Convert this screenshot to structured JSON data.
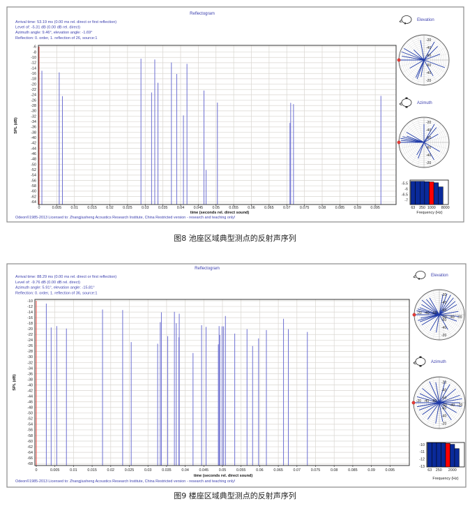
{
  "figures": [
    {
      "title": "Reflectogram",
      "info": [
        "Arrival time: 53.19 ms (0.00 ms rel. direct or first reflection)",
        "Level of: -5.31 dB (0.00 dB rel. direct)",
        "Azimuth angle: 9.46°, elevation angle: -1.69°",
        "Reflection: 0. order, 1. reflection of 26, source:1"
      ],
      "footer": "Odeon©1985-2013   Licensed to: Zhangjiusheng Acoustics Research Institute, China   Restricted version - research and teaching only!",
      "elevation_label": "Elevation",
      "azimuth_label": "Azimuth",
      "caption": "图8 池座区域典型测点的反射声序列"
    },
    {
      "title": "Reflectogram",
      "info": [
        "Arrival time: 88.29 ms (0.00 ms rel. direct or first reflection)",
        "Level of: -9.76 dB (0.00 dB rel. direct)",
        "Azimuth angle: 5.91°, elevation angle: -15.81°",
        "Reflection: 0. order, 1. reflection of 36, source:1"
      ],
      "footer": "Odeon©1985-2013   Licensed to: Zhangjiusheng Acoustics Research Institute, China   Restricted version - research and teaching only!",
      "elevation_label": "Elevation",
      "azimuth_label": "Azimuth",
      "caption": "图9 楼座区域典型测点的反射声序列"
    }
  ],
  "colors": {
    "reflection": "#6d70d2",
    "direct": "#e8403a",
    "highlight_band": "#ff0000",
    "band": "#0a2a9a",
    "text": "#3b3fae"
  },
  "chart_data": [
    {
      "type": "bar",
      "title": "Reflectogram",
      "xlabel": "time (seconds rel. direct sound)",
      "ylabel": "SPL (dB)",
      "xlim": [
        0,
        0.1
      ],
      "ylim": [
        -5.5,
        -65
      ],
      "grid": true,
      "xticks": [
        0,
        0.005,
        0.01,
        0.015,
        0.02,
        0.025,
        0.03,
        0.035,
        0.04,
        0.045,
        0.05,
        0.055,
        0.06,
        0.065,
        0.07,
        0.075,
        0.08,
        0.085,
        0.09,
        0.095
      ],
      "yticks": [
        -6,
        -8,
        -10,
        -12,
        -14,
        -16,
        -18,
        -20,
        -22,
        -24,
        -26,
        -28,
        -30,
        -32,
        -34,
        -36,
        -38,
        -40,
        -42,
        -44,
        -46,
        -48,
        -50,
        -52,
        -54,
        -56,
        -58,
        -60,
        -62,
        -64
      ],
      "direct": {
        "t": 0,
        "level": -6
      },
      "reflections": [
        {
          "t": 0.0008,
          "level": -15.0
        },
        {
          "t": 0.0057,
          "level": -15.6
        },
        {
          "t": 0.0066,
          "level": -24.5
        },
        {
          "t": 0.0288,
          "level": -10.5
        },
        {
          "t": 0.0318,
          "level": -23.1
        },
        {
          "t": 0.0327,
          "level": -10.8
        },
        {
          "t": 0.0336,
          "level": -19.5
        },
        {
          "t": 0.0374,
          "level": -11.9
        },
        {
          "t": 0.0389,
          "level": -16.2
        },
        {
          "t": 0.0408,
          "level": -31.7
        },
        {
          "t": 0.0418,
          "level": -12.4
        },
        {
          "t": 0.0466,
          "level": -22.4
        },
        {
          "t": 0.0472,
          "level": -52.1
        },
        {
          "t": 0.0504,
          "level": -26.9
        },
        {
          "t": 0.0709,
          "level": -34.5
        },
        {
          "t": 0.0711,
          "level": -27.0
        },
        {
          "t": 0.0719,
          "level": -27.5
        },
        {
          "t": 0.0966,
          "level": -24.4
        }
      ]
    },
    {
      "type": "polar",
      "title": "Elevation",
      "rlim": [
        -73,
        -7
      ],
      "ring_labels": [
        -20,
        -40,
        -60
      ],
      "direct_angle": 180,
      "rays": [
        {
          "angle": 180,
          "level": -8
        },
        {
          "angle": 150,
          "level": -12
        },
        {
          "angle": 160,
          "level": -10
        },
        {
          "angle": 170,
          "level": -14
        },
        {
          "angle": 100,
          "level": -20
        },
        {
          "angle": 60,
          "level": -18
        },
        {
          "angle": 45,
          "level": -22
        },
        {
          "angle": 20,
          "level": -28
        },
        {
          "angle": -20,
          "level": -15
        },
        {
          "angle": -60,
          "level": -25
        },
        {
          "angle": -110,
          "level": -20
        },
        {
          "angle": -115,
          "level": -22
        },
        {
          "angle": -100,
          "level": -28
        },
        {
          "angle": -150,
          "level": -30
        },
        {
          "angle": 135,
          "level": -35
        }
      ]
    },
    {
      "type": "polar",
      "title": "Azimuth",
      "rlim": [
        -73,
        -7
      ],
      "ring_labels": [
        -20,
        -40,
        -60
      ],
      "direct_angle": 180,
      "rays": [
        {
          "angle": 180,
          "level": -6
        },
        {
          "angle": 175,
          "level": -12
        },
        {
          "angle": 170,
          "level": -10
        },
        {
          "angle": 165,
          "level": -15
        },
        {
          "angle": 150,
          "level": -20
        },
        {
          "angle": 90,
          "level": -25
        },
        {
          "angle": 60,
          "level": -18
        },
        {
          "angle": 50,
          "level": -22
        },
        {
          "angle": 30,
          "level": -30
        },
        {
          "angle": -30,
          "level": -25
        },
        {
          "angle": -60,
          "level": -20
        },
        {
          "angle": -110,
          "level": -28
        },
        {
          "angle": -120,
          "level": -35
        },
        {
          "angle": 160,
          "level": -25
        }
      ]
    },
    {
      "type": "bar",
      "xlabel": "Frequency (Hz)",
      "ylim": [
        -5.2,
        -7.4
      ],
      "yticks": [
        -5.5,
        -6,
        -6.5,
        -7
      ],
      "xtick_labels": [
        "63",
        "250",
        "1000",
        "8000"
      ],
      "values": [
        -5.31,
        -5.31,
        -5.31,
        -5.34,
        -5.36,
        -5.44,
        -5.81
      ],
      "highlight_index": 4
    },
    {
      "type": "bar",
      "title": "Reflectogram",
      "xlabel": "time (seconds rel. direct sound)",
      "ylabel": "SPL (dB)",
      "xlim": [
        0,
        0.1
      ],
      "ylim": [
        -9.5,
        -68.7
      ],
      "grid": true,
      "xticks": [
        0,
        0.005,
        0.01,
        0.015,
        0.02,
        0.025,
        0.03,
        0.035,
        0.04,
        0.045,
        0.05,
        0.055,
        0.06,
        0.065,
        0.07,
        0.075,
        0.08,
        0.085,
        0.09,
        0.095
      ],
      "yticks": [
        -10,
        -12,
        -14,
        -16,
        -18,
        -20,
        -22,
        -24,
        -26,
        -28,
        -30,
        -32,
        -34,
        -36,
        -38,
        -40,
        -42,
        -44,
        -46,
        -48,
        -50,
        -52,
        -54,
        -56,
        -58,
        -60,
        -62,
        -64,
        -66,
        -68
      ],
      "direct": {
        "t": 0,
        "level": -10
      },
      "reflections": [
        {
          "t": 0.0027,
          "level": -11.0
        },
        {
          "t": 0.004,
          "level": -19.5
        },
        {
          "t": 0.0055,
          "level": -19.0
        },
        {
          "t": 0.0081,
          "level": -19.9
        },
        {
          "t": 0.0178,
          "level": -13.1
        },
        {
          "t": 0.0232,
          "level": -13.3
        },
        {
          "t": 0.0255,
          "level": -24.7
        },
        {
          "t": 0.0326,
          "level": -25.3
        },
        {
          "t": 0.0333,
          "level": -17.6
        },
        {
          "t": 0.0336,
          "level": -14.1
        },
        {
          "t": 0.0353,
          "level": -22.6
        },
        {
          "t": 0.0371,
          "level": -13.9
        },
        {
          "t": 0.0376,
          "level": -18.0
        },
        {
          "t": 0.0383,
          "level": -23.0
        },
        {
          "t": 0.0384,
          "level": -14.6
        },
        {
          "t": 0.0421,
          "level": -28.6
        },
        {
          "t": 0.0444,
          "level": -18.7
        },
        {
          "t": 0.0456,
          "level": -19.3
        },
        {
          "t": 0.0489,
          "level": -25.5
        },
        {
          "t": 0.0491,
          "level": -19.0
        },
        {
          "t": 0.0493,
          "level": -22.2
        },
        {
          "t": 0.0499,
          "level": -19.1
        },
        {
          "t": 0.0503,
          "level": -19.1
        },
        {
          "t": 0.0508,
          "level": -15.4
        },
        {
          "t": 0.0533,
          "level": -21.7
        },
        {
          "t": 0.0566,
          "level": -20.1
        },
        {
          "t": 0.0581,
          "level": -26.1
        },
        {
          "t": 0.0597,
          "level": -23.4
        },
        {
          "t": 0.0618,
          "level": -20.4
        },
        {
          "t": 0.0664,
          "level": -16.4
        },
        {
          "t": 0.0677,
          "level": -20.1
        },
        {
          "t": 0.0728,
          "level": -21.1
        }
      ]
    },
    {
      "type": "polar",
      "title": "Elevation",
      "rlim": [
        -73,
        -7
      ],
      "ring_labels": [
        -20,
        -40,
        -60
      ],
      "direct_angle": 180,
      "rays": [
        {
          "angle": 180,
          "level": -10
        },
        {
          "angle": 170,
          "level": -12
        },
        {
          "angle": 165,
          "level": -14
        },
        {
          "angle": 160,
          "level": -18
        },
        {
          "angle": 150,
          "level": -19
        },
        {
          "angle": 140,
          "level": -13
        },
        {
          "angle": 130,
          "level": -20
        },
        {
          "angle": 120,
          "level": -22
        },
        {
          "angle": 80,
          "level": -19
        },
        {
          "angle": 70,
          "level": -14
        },
        {
          "angle": 60,
          "level": -13
        },
        {
          "angle": 50,
          "level": -15
        },
        {
          "angle": 40,
          "level": -18
        },
        {
          "angle": 30,
          "level": -20
        },
        {
          "angle": 10,
          "level": -22
        },
        {
          "angle": -5,
          "level": -21
        },
        {
          "angle": -20,
          "level": -24
        },
        {
          "angle": -150,
          "level": -20
        },
        {
          "angle": -160,
          "level": -19
        },
        {
          "angle": -170,
          "level": -23
        },
        {
          "angle": -120,
          "level": -25
        },
        {
          "angle": -100,
          "level": -26
        },
        {
          "angle": -60,
          "level": -28
        },
        {
          "angle": 195,
          "level": -15
        }
      ]
    },
    {
      "type": "polar",
      "title": "Azimuth",
      "rlim": [
        -73,
        -7
      ],
      "ring_labels": [
        -20,
        -40,
        -60
      ],
      "direct_angle": 180,
      "rays": [
        {
          "angle": 180,
          "level": -10
        },
        {
          "angle": 165,
          "level": -14
        },
        {
          "angle": 155,
          "level": -18
        },
        {
          "angle": 140,
          "level": -16
        },
        {
          "angle": 115,
          "level": -13
        },
        {
          "angle": 100,
          "level": -20
        },
        {
          "angle": 75,
          "level": -15
        },
        {
          "angle": 60,
          "level": -19
        },
        {
          "angle": 40,
          "level": -18
        },
        {
          "angle": 20,
          "level": -17
        },
        {
          "angle": 10,
          "level": -14
        },
        {
          "angle": 0,
          "level": -20
        },
        {
          "angle": -10,
          "level": -16
        },
        {
          "angle": -30,
          "level": -22
        },
        {
          "angle": -55,
          "level": -19
        },
        {
          "angle": -80,
          "level": -24
        },
        {
          "angle": -100,
          "level": -19
        },
        {
          "angle": -125,
          "level": -21
        },
        {
          "angle": -145,
          "level": -20
        },
        {
          "angle": -160,
          "level": -18
        },
        {
          "angle": -170,
          "level": -15
        },
        {
          "angle": 190,
          "level": -17
        }
      ]
    },
    {
      "type": "bar",
      "xlabel": "Frequency (Hz)",
      "ylim": [
        -9.7,
        -13.1
      ],
      "yticks": [
        -10,
        -11,
        -12,
        -13
      ],
      "xtick_labels": [
        "63",
        "250",
        "2000"
      ],
      "values": [
        -9.72,
        -9.72,
        -9.74,
        -9.76,
        -9.82,
        -9.95,
        -10.55
      ],
      "highlight_index": 4
    }
  ]
}
